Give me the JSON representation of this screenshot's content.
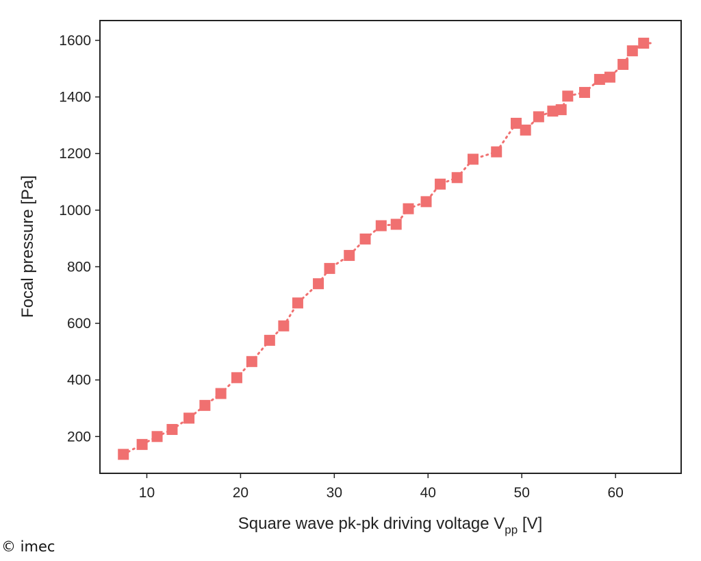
{
  "chart_data": {
    "type": "scatter",
    "xlabel_main": "Square wave pk-pk driving voltage V",
    "xlabel_sub": "pp",
    "xlabel_unit": " [V]",
    "ylabel": "Focal pressure [Pa]",
    "xlim": [
      5,
      67
    ],
    "ylim": [
      70,
      1670
    ],
    "xticks": [
      10,
      20,
      30,
      40,
      50,
      60
    ],
    "yticks": [
      200,
      400,
      600,
      800,
      1000,
      1200,
      1400,
      1600
    ],
    "grid": false,
    "marker": "square",
    "line_style": "dotted",
    "color": "#f07070",
    "series": [
      {
        "x": [
          7.5,
          9.5,
          11.1,
          12.7,
          14.5,
          16.2,
          17.9,
          19.6,
          21.2,
          23.1,
          24.6,
          26.1,
          28.3,
          29.5,
          31.6,
          33.3,
          35.0,
          36.6,
          37.9,
          39.8,
          41.3,
          43.1,
          44.8,
          47.3,
          49.4,
          50.4,
          51.8,
          53.3,
          54.2,
          54.9,
          56.7,
          58.3,
          59.4,
          60.8,
          61.8,
          63.0
        ],
        "y": [
          137,
          172,
          200,
          225,
          265,
          310,
          352,
          408,
          465,
          540,
          591,
          672,
          740,
          794,
          840,
          898,
          945,
          950,
          1005,
          1030,
          1092,
          1115,
          1180,
          1206,
          1307,
          1283,
          1330,
          1350,
          1355,
          1403,
          1416,
          1462,
          1470,
          1515,
          1563,
          1590
        ]
      }
    ]
  },
  "watermark": "© imec"
}
